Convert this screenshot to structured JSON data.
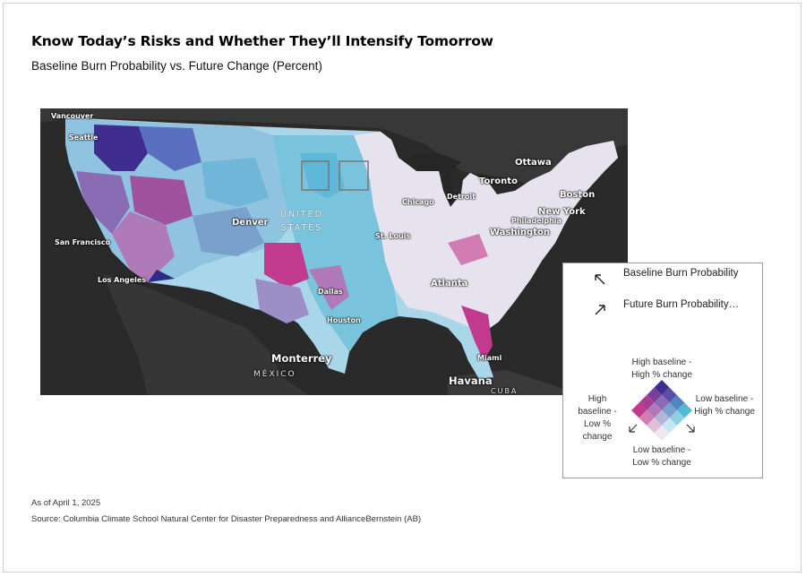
{
  "title": "Know Today’s Risks and Whether They’ll Intensify Tomorrow",
  "subtitle": "Baseline Burn Probability vs. Future Change (Percent)",
  "map": {
    "labels": {
      "vancouver": "Vancouver",
      "seattle": "Seattle",
      "san_francisco": "San Francisco",
      "los_angeles": "Los Angeles",
      "denver": "Denver",
      "united": "UNITED",
      "states": "STATES",
      "dallas": "Dallas",
      "houston": "Houston",
      "monterrey": "Monterrey",
      "mexico": "MÉXICO",
      "chicago": "Chicago",
      "detroit": "Detroit",
      "st_louis": "St. Louis",
      "atlanta": "Atlanta",
      "miami": "Miami",
      "havana": "Havana",
      "cuba": "CUBA",
      "ottawa": "Ottawa",
      "toronto": "Toronto",
      "boston": "Boston",
      "new_york": "New York",
      "philadelphia": "Philadelphia",
      "washington": "Washington"
    },
    "colors": {
      "background": "#2b2b2b",
      "land_outside": "#3a3a3a",
      "high_baseline_high_change": "#3f2d8f",
      "high_baseline_low_change": "#c23a8e",
      "low_baseline_high_change": "#55b9d6",
      "low_baseline_low_change": "#e6e3ef",
      "mid": "#8f83bf"
    }
  },
  "legend": {
    "item1": "Baseline Burn Probability",
    "item2": "Future Burn Probability…",
    "arrow1_icon": "arrow-up-left-icon",
    "arrow2_icon": "arrow-up-right-icon",
    "top": "High baseline - High % change",
    "left": "High baseline - Low % change",
    "right": "Low baseline - High % change",
    "bottom": "Low baseline - Low % change",
    "grid_colors": [
      [
        "#3f2d8f",
        "#5a4fa6",
        "#4f86c2",
        "#55b9d6"
      ],
      [
        "#7a3f9b",
        "#8a6cb4",
        "#7aa0cc",
        "#8fcfe2"
      ],
      [
        "#a83d95",
        "#b07ab8",
        "#b3b4d8",
        "#c7e6ef"
      ],
      [
        "#c23a8e",
        "#d27cb4",
        "#e1bfd9",
        "#ebe8f1"
      ]
    ]
  },
  "footer": {
    "date": "As of April 1, 2025",
    "source": "Source: Columbia Climate School Natural Center for Disaster Preparedness and AllianceBernstein (AB)"
  }
}
